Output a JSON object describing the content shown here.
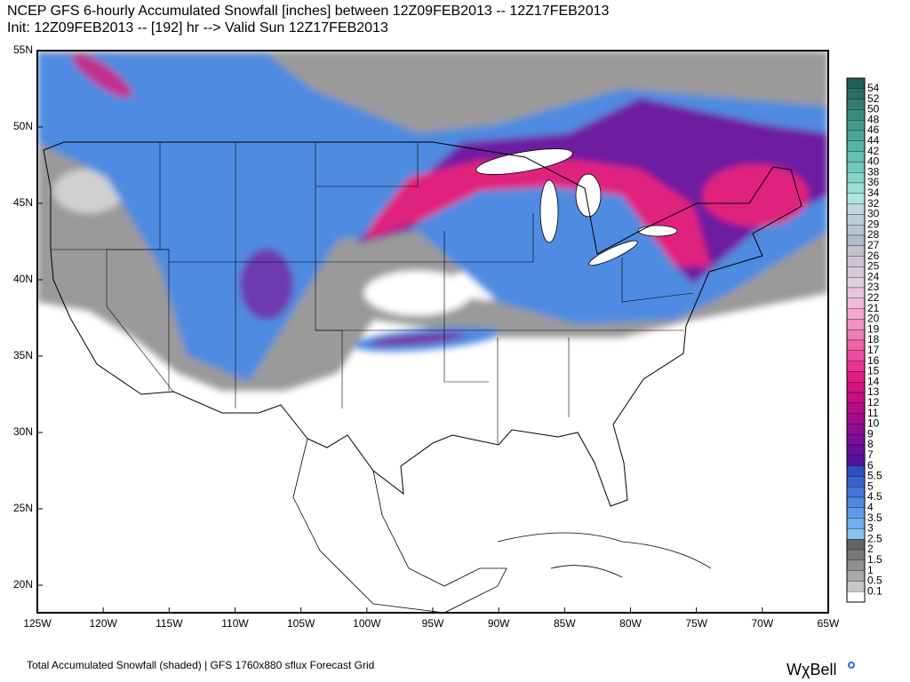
{
  "header": {
    "title_lines": [
      "NCEP GFS 6-hourly Accumulated Snowfall [inches] between 12Z09FEB2013 -- 12Z17FEB2013",
      "Init: 12Z09FEB2013 -- [192] hr --> Valid Sun 12Z17FEB2013"
    ]
  },
  "map": {
    "lat_labels": [
      "55N",
      "50N",
      "45N",
      "40N",
      "35N",
      "30N",
      "25N",
      "20N"
    ],
    "lon_labels": [
      "125W",
      "120W",
      "115W",
      "110W",
      "105W",
      "100W",
      "95W",
      "90W",
      "85W",
      "80W",
      "75W",
      "70W",
      "65W"
    ]
  },
  "legend": {
    "labels": [
      "54",
      "52",
      "50",
      "48",
      "46",
      "44",
      "42",
      "40",
      "38",
      "36",
      "34",
      "32",
      "30",
      "29",
      "28",
      "27",
      "26",
      "25",
      "24",
      "23",
      "22",
      "21",
      "20",
      "19",
      "18",
      "17",
      "16",
      "15",
      "14",
      "13",
      "12",
      "11",
      "10",
      "9",
      "8",
      "7",
      "6",
      "5.5",
      "5",
      "4.5",
      "4",
      "3.5",
      "3",
      "2.5",
      "2",
      "1.5",
      "1",
      "0.5",
      "0.1"
    ],
    "colors": [
      "#1f5f55",
      "#2a6e62",
      "#327d6f",
      "#3a8c7c",
      "#429b89",
      "#4aa996",
      "#55b5a2",
      "#62c0ae",
      "#72cbba",
      "#84d5c6",
      "#98ded1",
      "#ade7dc",
      "#c2d6de",
      "#bccdd8",
      "#b5c4d1",
      "#aebbc9",
      "#c2c2cc",
      "#cbc6d2",
      "#d4cbd6",
      "#dcd0da",
      "#e6c7d9",
      "#eebcd5",
      "#f0a8cb",
      "#f092c0",
      "#ef7bb5",
      "#ee63a9",
      "#ec4c9e",
      "#ea3492",
      "#e21c86",
      "#d5127f",
      "#c60f80",
      "#b40e86",
      "#a10e8c",
      "#8d0e91",
      "#790f95",
      "#661097",
      "#53129a",
      "#2f4fbf",
      "#3a62cc",
      "#4575d6",
      "#5088df",
      "#5f9be8",
      "#72aeee",
      "#88c0f2",
      "#646464",
      "#787878",
      "#8f8f8f",
      "#a8a8a8",
      "#c8c8c8"
    ]
  },
  "footer": {
    "caption": "Total Accumulated Snowfall (shaded) | GFS 1760x880 sflux Forecast Grid",
    "logo": "WχBell"
  }
}
